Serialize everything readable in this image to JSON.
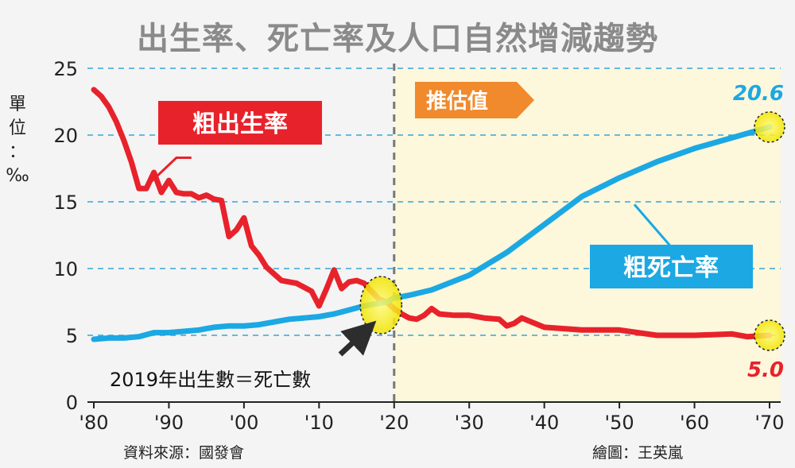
{
  "chart_data": {
    "type": "line",
    "title": "出生率、死亡率及人口自然增減趨勢",
    "ylabel": "單位：‰",
    "ylabel_chars": [
      "單",
      "位",
      "：",
      "‰"
    ],
    "ylim": [
      0,
      25
    ],
    "yticks": [
      "0",
      "5",
      "10",
      "15",
      "20",
      "25"
    ],
    "xlim": [
      1980,
      2070
    ],
    "xticks": [
      {
        "year": 1980,
        "label": "'80"
      },
      {
        "year": 1990,
        "label": "'90"
      },
      {
        "year": 2000,
        "label": "'00"
      },
      {
        "year": 2010,
        "label": "'10"
      },
      {
        "year": 2020,
        "label": "'20"
      },
      {
        "year": 2030,
        "label": "'30"
      },
      {
        "year": 2040,
        "label": "'40"
      },
      {
        "year": 2050,
        "label": "'50"
      },
      {
        "year": 2060,
        "label": "'60"
      },
      {
        "year": 2070,
        "label": "'70"
      }
    ],
    "grid": "horizontal dashed",
    "estimate_start": 2020,
    "estimate_label": "推估值",
    "series": [
      {
        "name": "粗出生率",
        "color": "#e8222b",
        "end_label": "5.0",
        "x": [
          1980,
          1981,
          1982,
          1983,
          1984,
          1985,
          1986,
          1987,
          1988,
          1989,
          1990,
          1991,
          1992,
          1993,
          1994,
          1995,
          1996,
          1997,
          1998,
          1999,
          2000,
          2001,
          2002,
          2003,
          2004,
          2005,
          2006,
          2007,
          2008,
          2009,
          2010,
          2011,
          2012,
          2013,
          2014,
          2015,
          2016,
          2017,
          2018,
          2019,
          2020,
          2021,
          2022,
          2023,
          2024,
          2025,
          2026,
          2028,
          2030,
          2032,
          2034,
          2035,
          2036,
          2037,
          2040,
          2045,
          2050,
          2055,
          2060,
          2065,
          2067,
          2070
        ],
        "values": [
          23.4,
          22.9,
          22.1,
          21.0,
          19.6,
          18.0,
          16.0,
          16.0,
          17.2,
          15.7,
          16.6,
          15.7,
          15.6,
          15.6,
          15.3,
          15.5,
          15.2,
          15.1,
          12.4,
          12.9,
          13.8,
          11.7,
          11.0,
          10.1,
          9.6,
          9.1,
          9.0,
          8.9,
          8.6,
          8.3,
          7.2,
          8.5,
          9.9,
          8.5,
          9.0,
          9.1,
          8.9,
          8.3,
          7.7,
          7.5,
          7.0,
          6.6,
          6.3,
          6.2,
          6.5,
          7.0,
          6.6,
          6.5,
          6.5,
          6.3,
          6.2,
          5.7,
          5.9,
          6.3,
          5.6,
          5.4,
          5.4,
          5.0,
          5.0,
          5.1,
          4.9,
          5.0
        ]
      },
      {
        "name": "粗死亡率",
        "color": "#1ba8e3",
        "end_label": "20.6",
        "x": [
          1980,
          1982,
          1984,
          1986,
          1988,
          1990,
          1992,
          1994,
          1996,
          1998,
          2000,
          2002,
          2004,
          2006,
          2008,
          2010,
          2012,
          2014,
          2016,
          2018,
          2019,
          2020,
          2022,
          2025,
          2030,
          2035,
          2040,
          2045,
          2050,
          2055,
          2060,
          2065,
          2070
        ],
        "values": [
          4.7,
          4.8,
          4.8,
          4.9,
          5.2,
          5.2,
          5.3,
          5.4,
          5.6,
          5.7,
          5.7,
          5.8,
          6.0,
          6.2,
          6.3,
          6.4,
          6.6,
          6.9,
          7.2,
          7.4,
          7.5,
          7.8,
          8.0,
          8.4,
          9.5,
          11.2,
          13.3,
          15.4,
          16.8,
          18.0,
          19.0,
          19.8,
          20.6
        ]
      }
    ],
    "annotations": {
      "crossover_note": "2019年出生數＝死亡數"
    }
  },
  "source": "資料來源：國發會",
  "credit": "繪圖：王英嵐"
}
